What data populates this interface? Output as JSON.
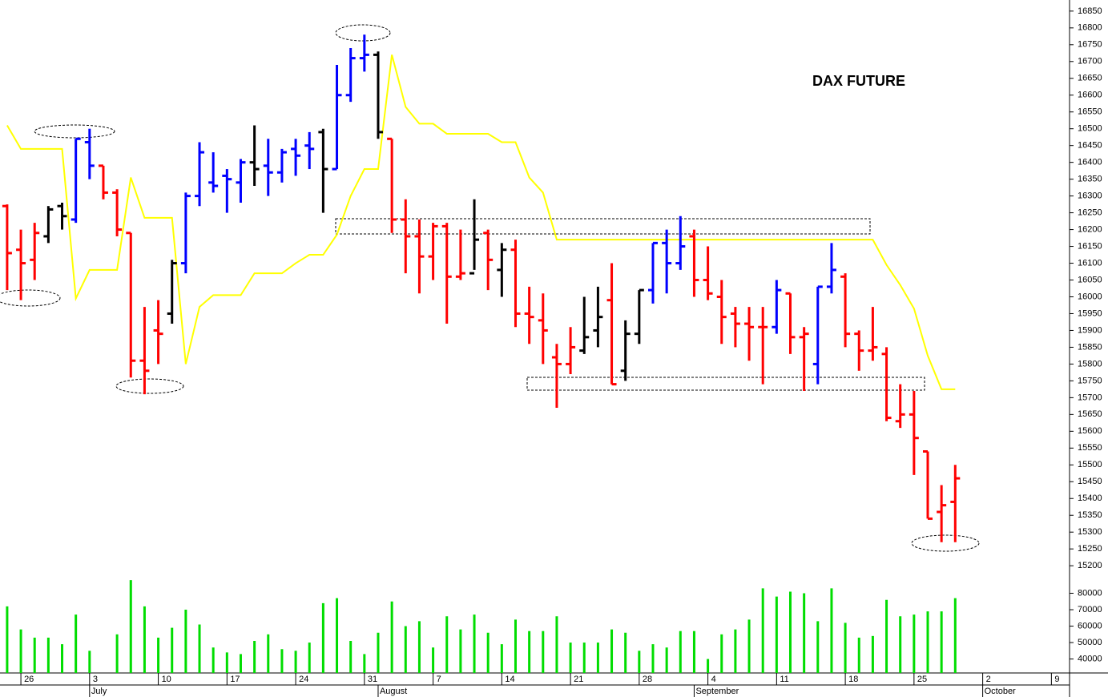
{
  "chart_data": [
    {
      "type": "ohlc",
      "title": "DAX FUTURE",
      "x": [
        0,
        1,
        2,
        3,
        4,
        5,
        6,
        7,
        8,
        9,
        10,
        11,
        12,
        13,
        14,
        15,
        16,
        17,
        18,
        19,
        20,
        21,
        22,
        23,
        24,
        25,
        26,
        27,
        28,
        29,
        30,
        31,
        32,
        33,
        34,
        35,
        36,
        37,
        38,
        39,
        40,
        41,
        42,
        43,
        44,
        45,
        46,
        47,
        48,
        49,
        50,
        51,
        52,
        53,
        54,
        55,
        56,
        57,
        58,
        59,
        60,
        61,
        62,
        63,
        64,
        65,
        66,
        67,
        68,
        69
      ],
      "open": [
        16270,
        16140,
        16110,
        16180,
        16270,
        16230,
        16460,
        16390,
        16310,
        16190,
        15810,
        15900,
        15950,
        16100,
        16300,
        16340,
        16360,
        16340,
        16400,
        16390,
        16370,
        16440,
        16450,
        16490,
        16380,
        16600,
        16710,
        16720,
        16470,
        16230,
        16180,
        16120,
        16210,
        16060,
        16070,
        16190,
        16080,
        16140,
        15950,
        15930,
        15820,
        15800,
        15840,
        15900,
        15990,
        15780,
        15890,
        16020,
        16160,
        16100,
        16180,
        16050,
        16000,
        15950,
        15920,
        15910,
        15910,
        16010,
        15880,
        15800,
        16030,
        16060,
        15890,
        15840,
        15830,
        15630,
        15650,
        15540,
        15360,
        15390
      ],
      "high": [
        16275,
        16200,
        16220,
        16270,
        16280,
        16470,
        16500,
        16390,
        16320,
        16190,
        15970,
        15990,
        16110,
        16310,
        16460,
        16430,
        16380,
        16410,
        16510,
        16470,
        16440,
        16470,
        16490,
        16500,
        16690,
        16740,
        16780,
        16730,
        16470,
        16290,
        16230,
        16220,
        16220,
        16200,
        16290,
        16200,
        16160,
        16170,
        16030,
        16010,
        15860,
        15910,
        16000,
        16030,
        16100,
        15930,
        16020,
        16160,
        16200,
        16240,
        16200,
        16150,
        16050,
        15970,
        15970,
        15970,
        16050,
        16010,
        15910,
        16030,
        16160,
        16070,
        15900,
        15970,
        15850,
        15740,
        15720,
        15540,
        15440,
        15500
      ],
      "low": [
        16020,
        15990,
        16050,
        16160,
        16200,
        16220,
        16350,
        16290,
        16180,
        15760,
        15710,
        15800,
        15920,
        16070,
        16270,
        16310,
        16250,
        16280,
        16330,
        16300,
        16340,
        16360,
        16380,
        16250,
        16380,
        16580,
        16670,
        16470,
        16190,
        16070,
        16010,
        16050,
        15920,
        16050,
        16080,
        16020,
        16000,
        15910,
        15860,
        15800,
        15670,
        15770,
        15830,
        15850,
        15740,
        15750,
        15860,
        15980,
        16010,
        16080,
        16000,
        15990,
        15860,
        15850,
        15810,
        15740,
        15890,
        15830,
        15720,
        15740,
        16010,
        15850,
        15780,
        15810,
        15630,
        15610,
        15470,
        15340,
        15270,
        15270
      ],
      "close": [
        16130,
        16100,
        16190,
        16260,
        16240,
        16470,
        16390,
        16310,
        16200,
        15810,
        15780,
        15890,
        16100,
        16300,
        16430,
        16330,
        16350,
        16400,
        16380,
        16370,
        16430,
        16420,
        16440,
        16380,
        16600,
        16710,
        16720,
        16490,
        16230,
        16180,
        16120,
        16210,
        16060,
        16070,
        16170,
        16110,
        16140,
        15950,
        15940,
        15900,
        15800,
        15850,
        15880,
        15940,
        15740,
        15890,
        16020,
        16160,
        16100,
        16150,
        16050,
        16010,
        15940,
        15920,
        15910,
        15910,
        16020,
        15880,
        15890,
        16030,
        16080,
        15890,
        15840,
        15850,
        15640,
        15650,
        15580,
        15340,
        15380,
        15460
      ],
      "bar_colors": [
        "#ff0000",
        "#ff0000",
        "#ff0000",
        "#000000",
        "#000000",
        "#0000ff",
        "#0000ff",
        "#ff0000",
        "#ff0000",
        "#ff0000",
        "#ff0000",
        "#ff0000",
        "#000000",
        "#0000ff",
        "#0000ff",
        "#0000ff",
        "#0000ff",
        "#0000ff",
        "#000000",
        "#0000ff",
        "#0000ff",
        "#0000ff",
        "#0000ff",
        "#000000",
        "#0000ff",
        "#0000ff",
        "#0000ff",
        "#000000",
        "#ff0000",
        "#ff0000",
        "#ff0000",
        "#ff0000",
        "#ff0000",
        "#ff0000",
        "#000000",
        "#ff0000",
        "#000000",
        "#ff0000",
        "#ff0000",
        "#ff0000",
        "#ff0000",
        "#ff0000",
        "#000000",
        "#000000",
        "#ff0000",
        "#000000",
        "#000000",
        "#0000ff",
        "#0000ff",
        "#0000ff",
        "#ff0000",
        "#ff0000",
        "#ff0000",
        "#ff0000",
        "#ff0000",
        "#ff0000",
        "#0000ff",
        "#ff0000",
        "#ff0000",
        "#0000ff",
        "#0000ff",
        "#ff0000",
        "#ff0000",
        "#ff0000",
        "#ff0000",
        "#ff0000",
        "#ff0000",
        "#ff0000",
        "#ff0000",
        "#ff0000"
      ],
      "overlay": {
        "color": "#ffff00",
        "values": [
          16510,
          16440,
          16440,
          16440,
          16440,
          15995,
          16080,
          16080,
          16080,
          16355,
          16235,
          16235,
          16235,
          15800,
          15970,
          16005,
          16005,
          16005,
          16070,
          16070,
          16070,
          16100,
          16125,
          16125,
          16185,
          16300,
          16380,
          16380,
          16720,
          16565,
          16515,
          16515,
          16485,
          16485,
          16485,
          16485,
          16460,
          16460,
          16355,
          16310,
          16170,
          16170,
          16170,
          16170,
          16170,
          16170,
          16170,
          16170,
          16170,
          16170,
          16170,
          16170,
          16170,
          16170,
          16170,
          16170,
          16170,
          16170,
          16170,
          16170,
          16170,
          16170,
          16170,
          16170,
          16095,
          16035,
          15965,
          15825,
          15725,
          15725
        ]
      },
      "xlim": [
        -0.52,
        77.32
      ],
      "xticks": [
        {
          "value": 1,
          "label": "26"
        },
        {
          "value": 6,
          "label": "3"
        },
        {
          "value": 11,
          "label": "10"
        },
        {
          "value": 16,
          "label": "17"
        },
        {
          "value": 21,
          "label": "24"
        },
        {
          "value": 26,
          "label": "31"
        },
        {
          "value": 31,
          "label": "7"
        },
        {
          "value": 36,
          "label": "14"
        },
        {
          "value": 41,
          "label": "21"
        },
        {
          "value": 46,
          "label": "28"
        },
        {
          "value": 51,
          "label": "4"
        },
        {
          "value": 56,
          "label": "11"
        },
        {
          "value": 61,
          "label": "18"
        },
        {
          "value": 66,
          "label": "25"
        },
        {
          "value": 71,
          "label": "2"
        },
        {
          "value": 76,
          "label": "9"
        }
      ],
      "month_ticks": [
        {
          "value": 6,
          "label": "July"
        },
        {
          "value": 27,
          "label": "August"
        },
        {
          "value": 50,
          "label": "September"
        },
        {
          "value": 71,
          "label": "October"
        }
      ],
      "ylim": [
        15167,
        16883
      ],
      "yticks": [
        15200,
        15250,
        15300,
        15350,
        15400,
        15450,
        15500,
        15550,
        15600,
        15650,
        15700,
        15750,
        15800,
        15850,
        15900,
        15950,
        16000,
        16050,
        16100,
        16150,
        16200,
        16250,
        16300,
        16350,
        16400,
        16450,
        16500,
        16550,
        16600,
        16650,
        16700,
        16750,
        16800,
        16850
      ]
    },
    {
      "type": "bar",
      "color": "#00dd00",
      "values": [
        72000,
        58000,
        53000,
        53000,
        49000,
        67000,
        45000,
        null,
        55000,
        88000,
        72000,
        53000,
        59000,
        70000,
        61000,
        47000,
        44000,
        43000,
        51000,
        55000,
        46000,
        45000,
        50000,
        74000,
        77000,
        51000,
        43000,
        56000,
        75000,
        60000,
        63000,
        47000,
        66000,
        58000,
        67000,
        56000,
        49000,
        64000,
        57000,
        57000,
        66000,
        50000,
        50000,
        50000,
        58000,
        56000,
        45000,
        49000,
        47000,
        57000,
        57000,
        40000,
        55000,
        58000,
        64000,
        83000,
        78000,
        81000,
        80000,
        63000,
        83000,
        62000,
        53000,
        54000,
        76000,
        66000,
        67000,
        69000,
        69000,
        77000
      ],
      "ylim": [
        31500,
        90000
      ],
      "yticks": [
        40000,
        50000,
        60000,
        70000,
        80000
      ]
    }
  ]
}
